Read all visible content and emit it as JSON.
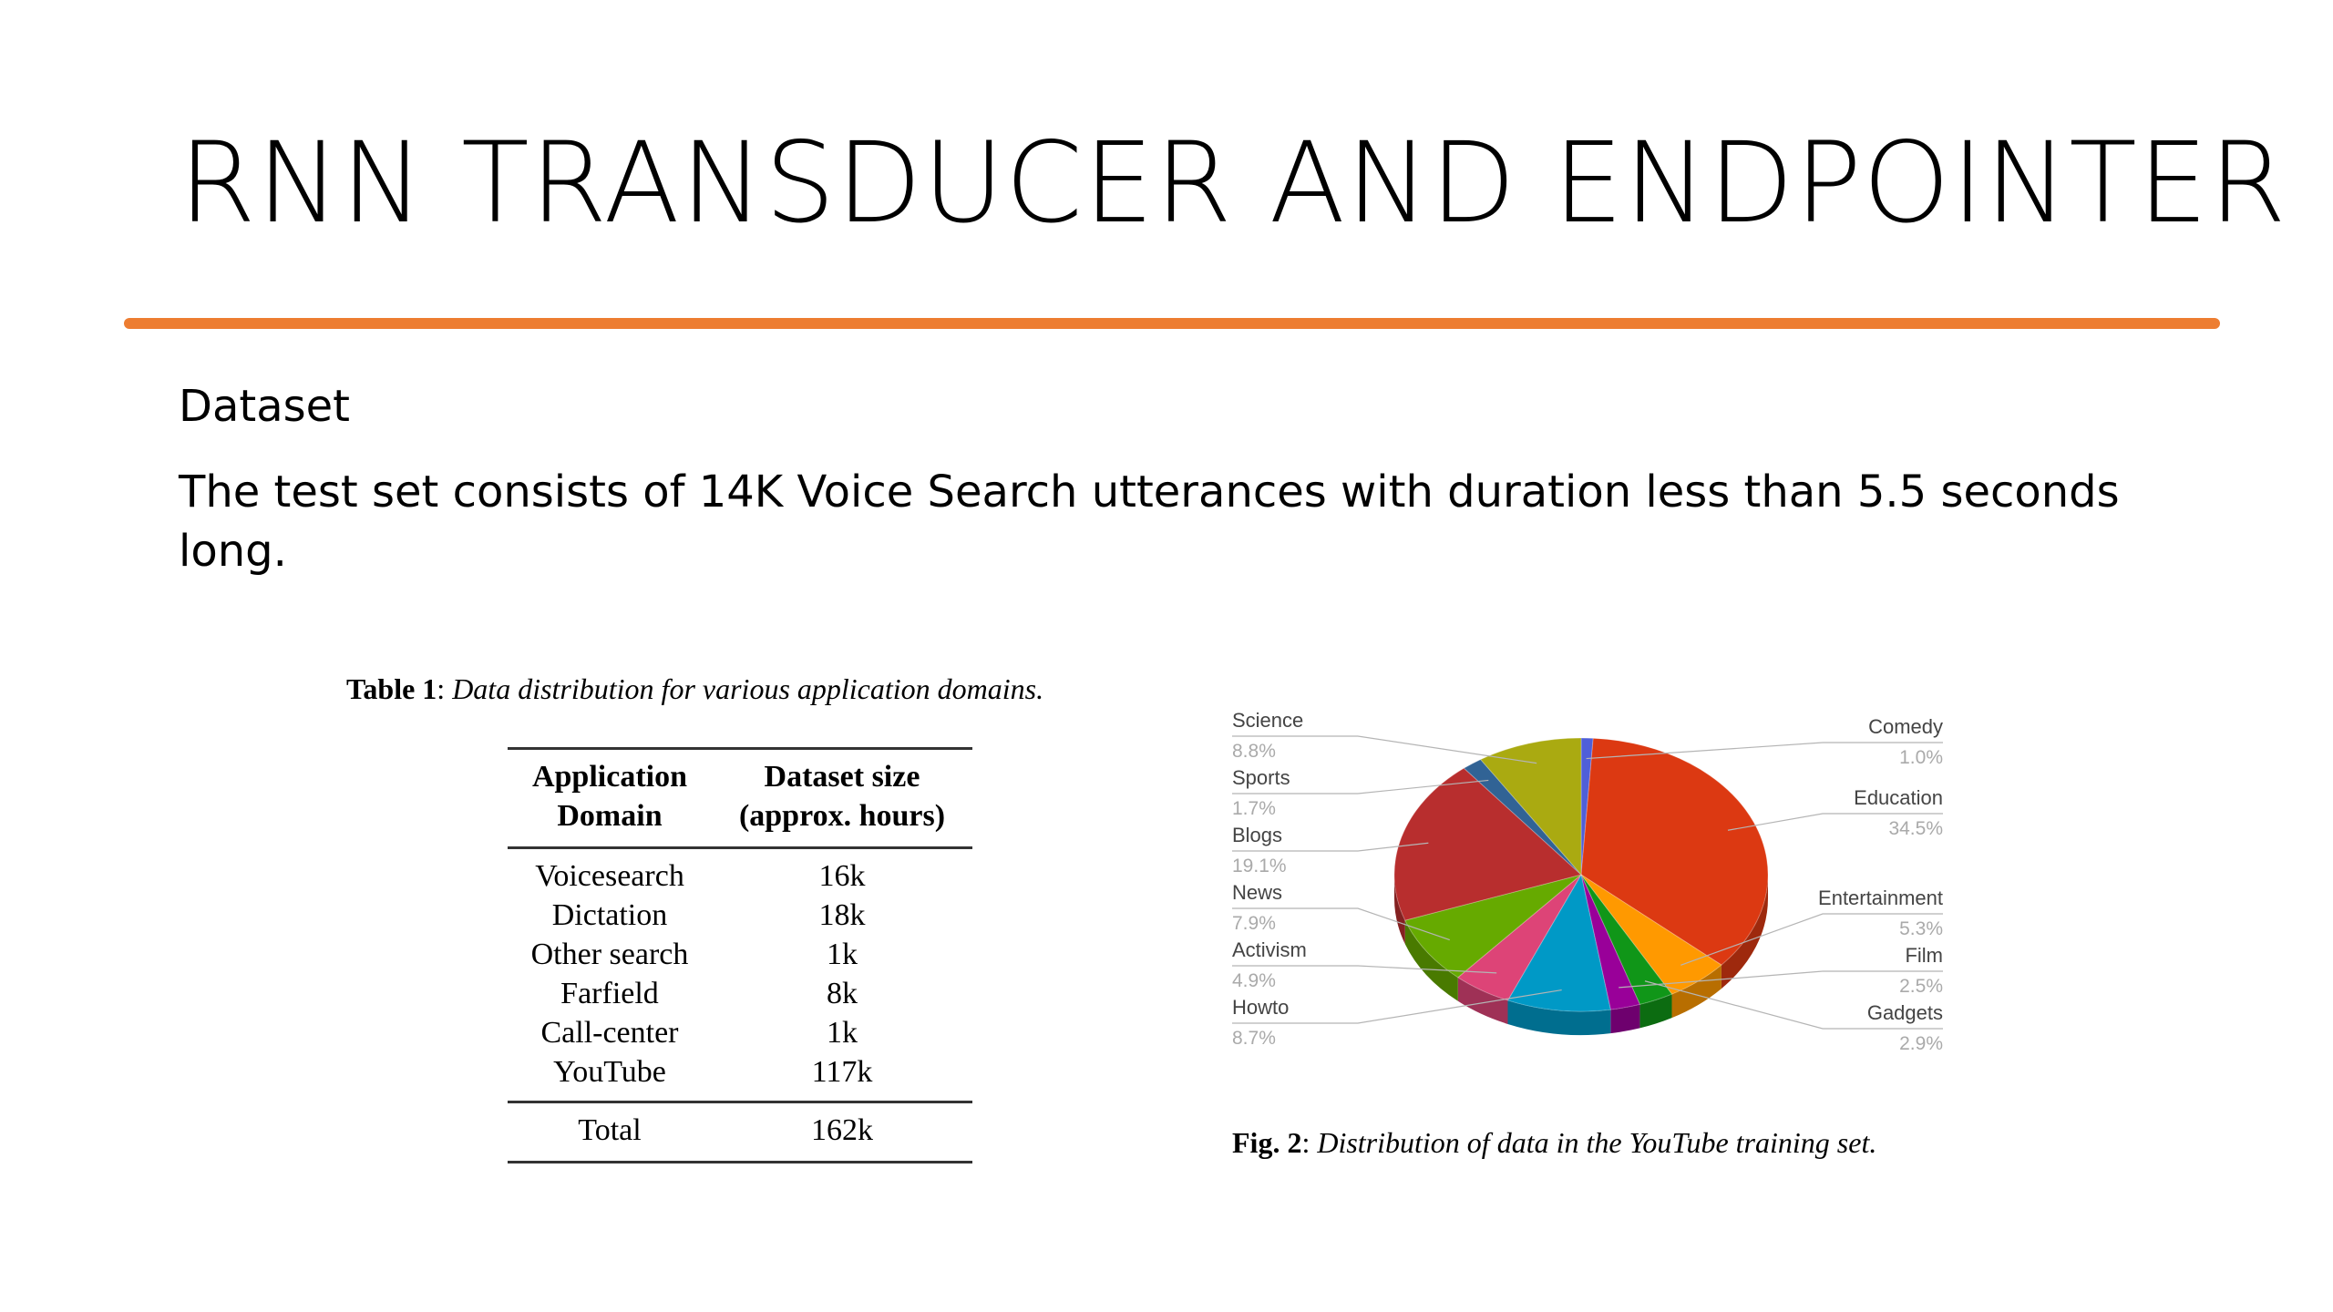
{
  "slide": {
    "title": "RNN TRANSDUCER AND ENDPOINTER",
    "accent_color": "#ED7D31",
    "subheading": "Dataset",
    "body": "The test set consists of 14K Voice Search utterances with duration less than 5.5 seconds long."
  },
  "table1": {
    "caption_label": "Table 1",
    "caption_sep": ": ",
    "caption_text": "Data distribution for various application domains.",
    "header": {
      "col1_line1": "Application",
      "col1_line2": "Domain",
      "col2_line1": "Dataset size",
      "col2_line2": "(approx. hours)"
    },
    "rows": [
      {
        "domain": "Voicesearch",
        "size": "16k"
      },
      {
        "domain": "Dictation",
        "size": "18k"
      },
      {
        "domain": "Other search",
        "size": "1k"
      },
      {
        "domain": "Farfield",
        "size": "8k"
      },
      {
        "domain": "Call-center",
        "size": "1k"
      },
      {
        "domain": "YouTube",
        "size": "117k"
      }
    ],
    "total": {
      "label": "Total",
      "size": "162k"
    }
  },
  "figure2": {
    "caption_label": "Fig. 2",
    "caption_sep": ": ",
    "caption_text": "Distribution of data in the YouTube training set."
  },
  "chart_data": {
    "type": "pie",
    "title": "",
    "three_d": true,
    "slices": [
      {
        "name": "Comedy",
        "pct_label": "1.0%",
        "value": 1.0,
        "color": "#4f5fd8"
      },
      {
        "name": "Education",
        "pct_label": "34.5%",
        "value": 34.5,
        "color": "#dc3912"
      },
      {
        "name": "Entertainment",
        "pct_label": "5.3%",
        "value": 5.3,
        "color": "#ff9900"
      },
      {
        "name": "Gadgets",
        "pct_label": "2.9%",
        "value": 2.9,
        "color": "#109618"
      },
      {
        "name": "Film",
        "pct_label": "2.5%",
        "value": 2.5,
        "color": "#990099"
      },
      {
        "name": "Howto",
        "pct_label": "8.7%",
        "value": 8.7,
        "color": "#0099c6"
      },
      {
        "name": "Activism",
        "pct_label": "4.9%",
        "value": 4.9,
        "color": "#dd4477"
      },
      {
        "name": "News",
        "pct_label": "7.9%",
        "value": 7.9,
        "color": "#66aa00"
      },
      {
        "name": "Blogs",
        "pct_label": "19.1%",
        "value": 19.1,
        "color": "#b82e2e"
      },
      {
        "name": "Sports",
        "pct_label": "1.7%",
        "value": 1.7,
        "color": "#316395"
      },
      {
        "name": "Science",
        "pct_label": "8.8%",
        "value": 8.8,
        "color": "#aaaa11"
      }
    ],
    "legend_left": [
      "Science",
      "Sports",
      "Blogs",
      "News",
      "Activism",
      "Howto"
    ],
    "legend_right": [
      "Comedy",
      "Education",
      "Entertainment",
      "Film",
      "Gadgets"
    ]
  }
}
